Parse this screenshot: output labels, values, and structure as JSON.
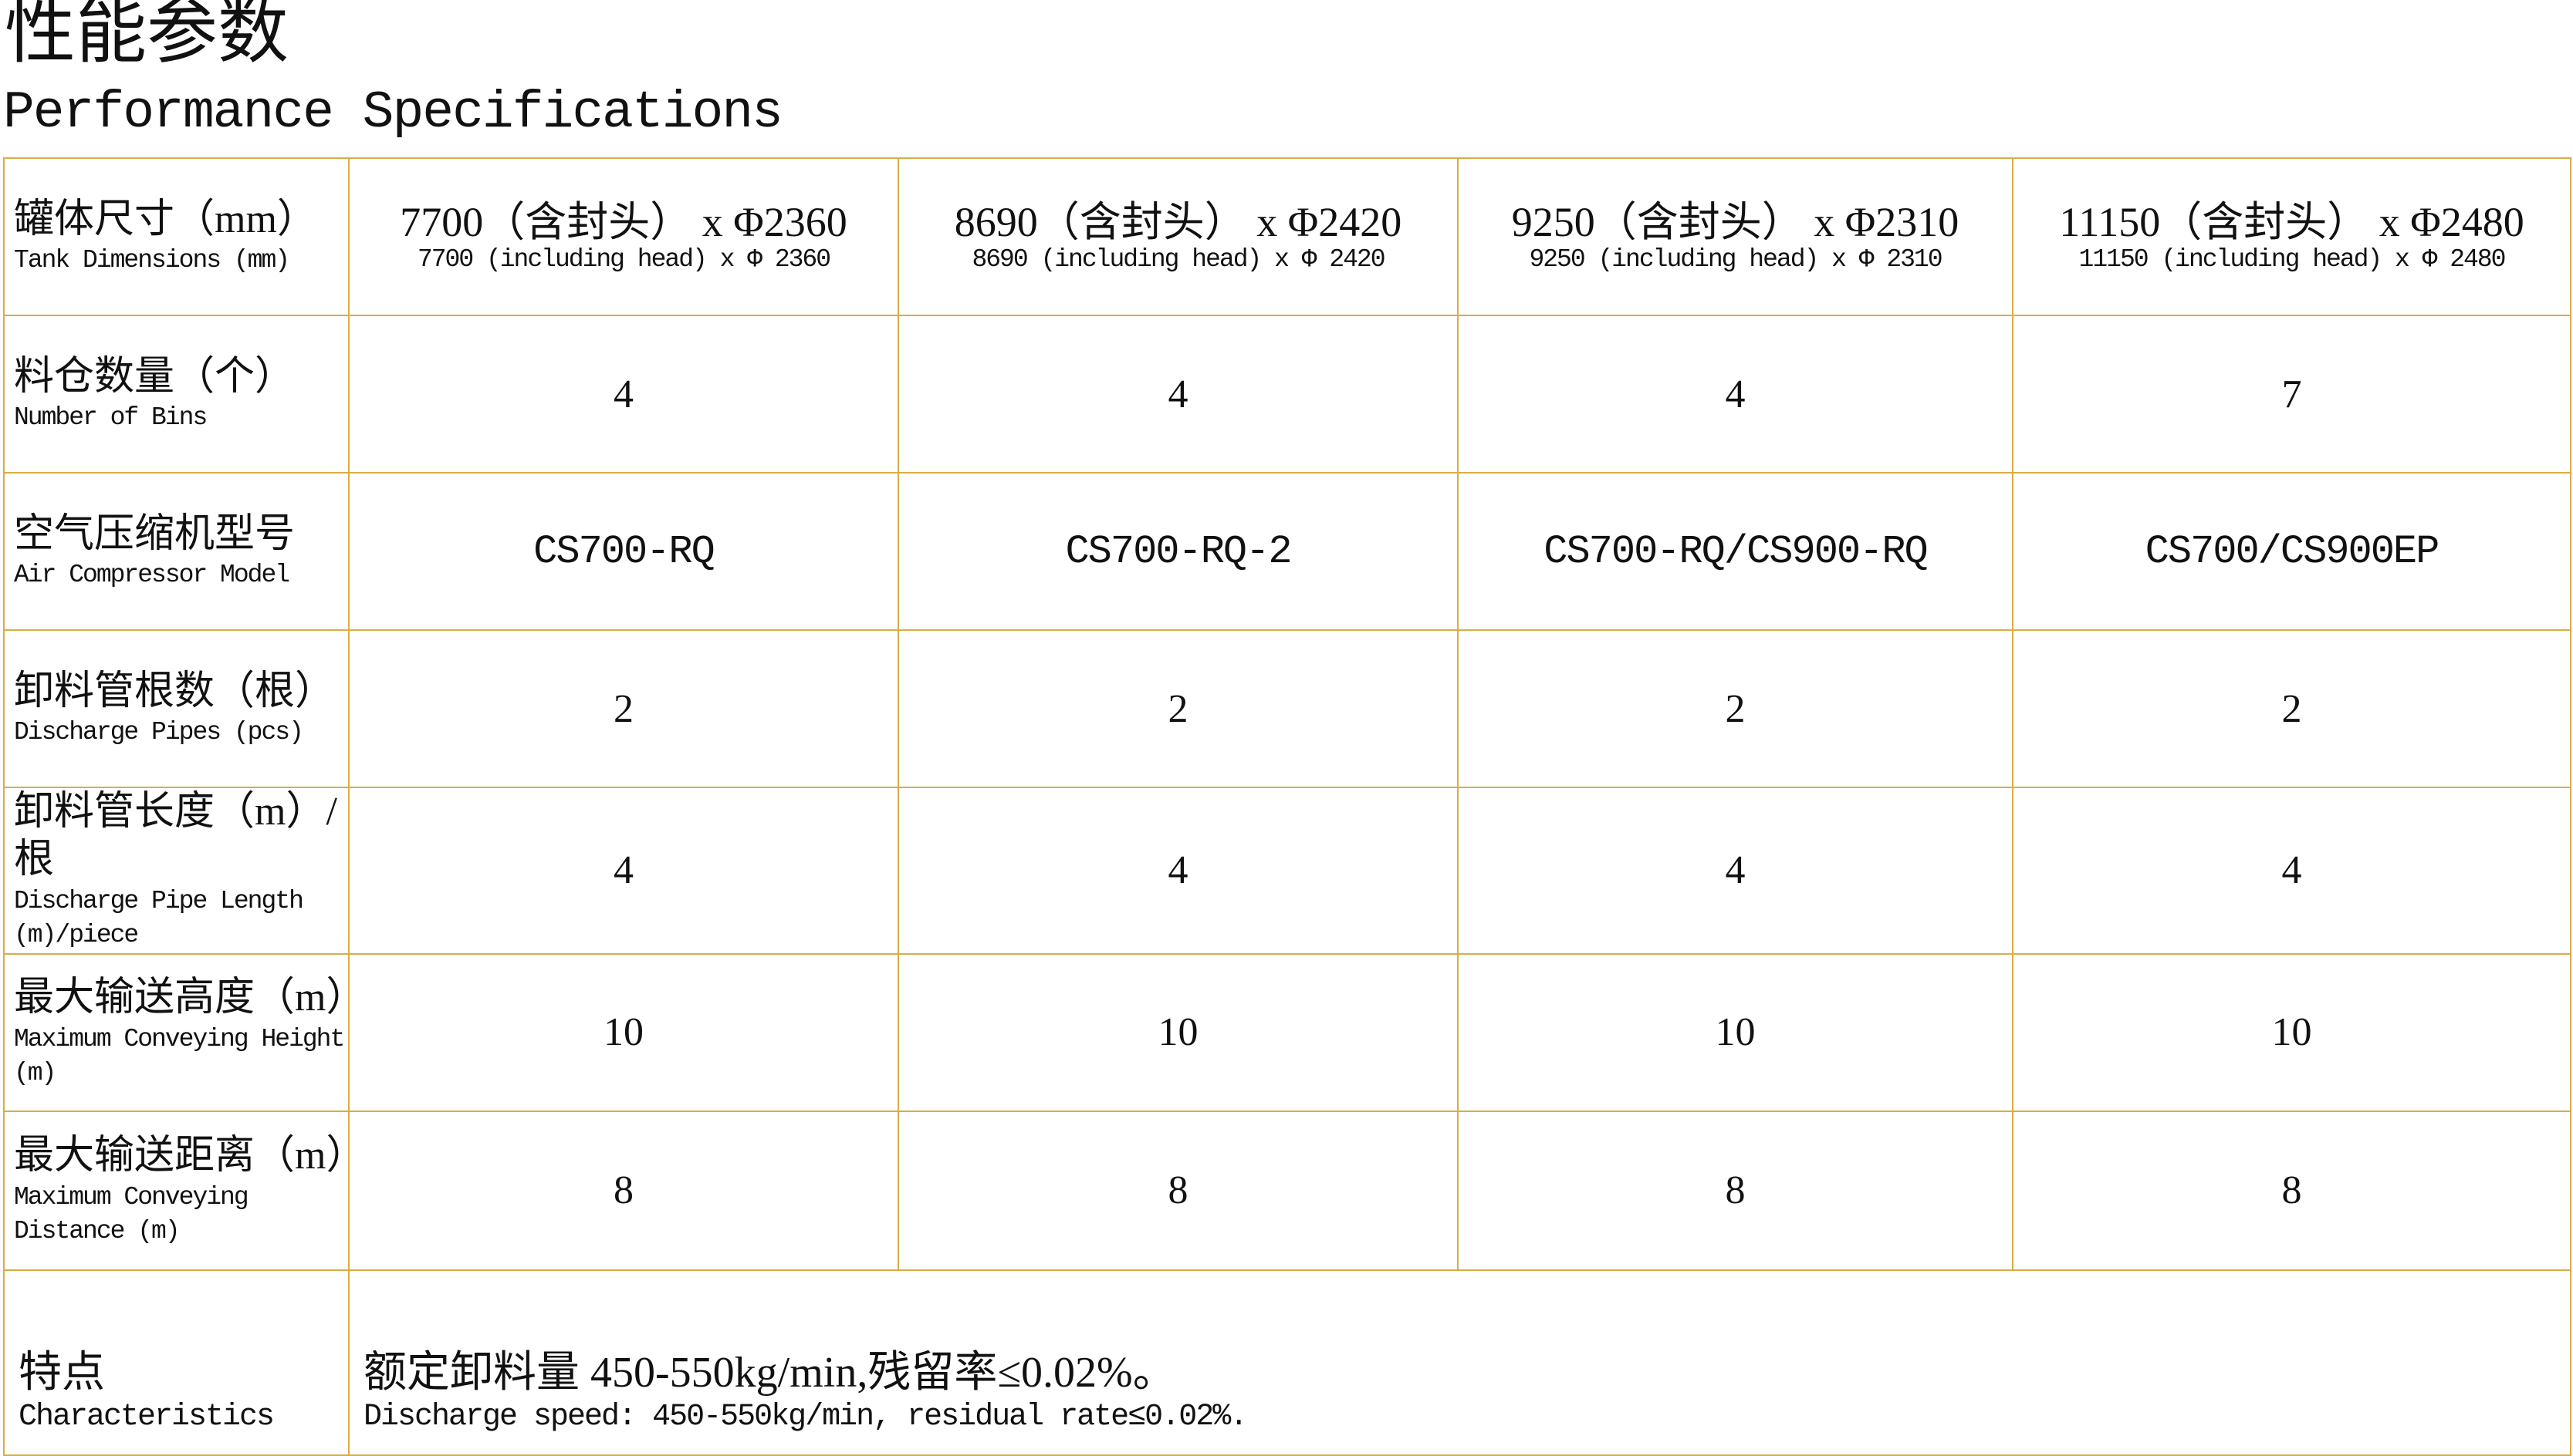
{
  "title_cn": "性能参数",
  "title_en": "Performance Specifications",
  "rows": [
    {
      "label_cn": "罐体尺寸（mm）",
      "label_en": "Tank Dimensions (mm)",
      "values": [
        {
          "cn": "7700（含封头） x Φ2360",
          "en": "7700 (including head) x Φ 2360"
        },
        {
          "cn": "8690（含封头） x Φ2420",
          "en": "8690 (including head) x Φ 2420"
        },
        {
          "cn": "9250（含封头） x Φ2310",
          "en": "9250 (including head) x Φ 2310"
        },
        {
          "cn": "11150（含封头） x Φ2480",
          "en": "11150 (including head) x Φ 2480"
        }
      ]
    },
    {
      "label_cn": "料仓数量（个）",
      "label_en": "Number of Bins",
      "values": [
        "4",
        "4",
        "4",
        "7"
      ]
    },
    {
      "label_cn": "空气压缩机型号",
      "label_en": "Air Compressor Model",
      "values": [
        "CS700-RQ",
        "CS700-RQ-2",
        "CS700-RQ/CS900-RQ",
        "CS700/CS900EP"
      ]
    },
    {
      "label_cn": "卸料管根数（根）",
      "label_en": "Discharge Pipes (pcs)",
      "values": [
        "2",
        "2",
        "2",
        "2"
      ]
    },
    {
      "label_cn": "卸料管长度（m）/根",
      "label_en": "Discharge Pipe Length (m)/piece",
      "values": [
        "4",
        "4",
        "4",
        "4"
      ]
    },
    {
      "label_cn": "最大输送高度（m）",
      "label_en": "Maximum Conveying Height (m)",
      "values": [
        "10",
        "10",
        "10",
        "10"
      ]
    },
    {
      "label_cn": "最大输送距离（m）",
      "label_en": "Maximum Conveying Distance (m)",
      "values": [
        "8",
        "8",
        "8",
        "8"
      ]
    }
  ],
  "characteristics": {
    "label_cn": "特点",
    "label_en": "Characteristics",
    "text_cn": "额定卸料量 450-550kg/min,残留率≤0.02%。",
    "text_en": "Discharge speed: 450-550kg/min, residual rate≤0.02%."
  },
  "colors": {
    "border": "#d9ad45"
  }
}
